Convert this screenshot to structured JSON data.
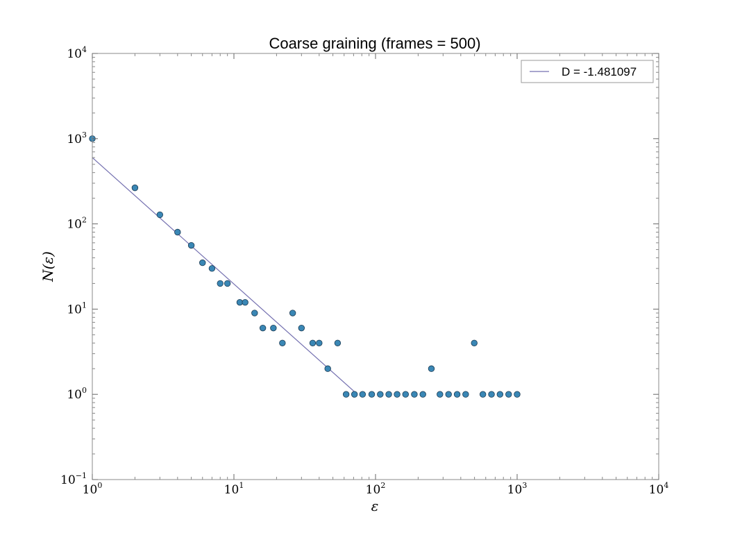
{
  "chart_data": {
    "type": "scatter",
    "title": "Coarse graining (frames = 500)",
    "xlabel": "ε",
    "ylabel": "N(ε)",
    "xscale": "log",
    "yscale": "log",
    "xlim": [
      1,
      10000
    ],
    "ylim": [
      0.1,
      10000
    ],
    "x_ticks": [
      {
        "base": "10",
        "exp": "0",
        "value": 1
      },
      {
        "base": "10",
        "exp": "1",
        "value": 10
      },
      {
        "base": "10",
        "exp": "2",
        "value": 100
      },
      {
        "base": "10",
        "exp": "3",
        "value": 1000
      },
      {
        "base": "10",
        "exp": "4",
        "value": 10000
      }
    ],
    "y_ticks": [
      {
        "base": "10",
        "exp": "−1",
        "value": 0.1
      },
      {
        "base": "10",
        "exp": "0",
        "value": 1
      },
      {
        "base": "10",
        "exp": "1",
        "value": 10
      },
      {
        "base": "10",
        "exp": "2",
        "value": 100
      },
      {
        "base": "10",
        "exp": "3",
        "value": 1000
      },
      {
        "base": "10",
        "exp": "4",
        "value": 10000
      }
    ],
    "grid": false,
    "legend_position": "top-right",
    "series": [
      {
        "kind": "scatter",
        "marker_color": "#3a87b5",
        "points": [
          [
            1,
            1000
          ],
          [
            2,
            265
          ],
          [
            3,
            128
          ],
          [
            4,
            80
          ],
          [
            5,
            56
          ],
          [
            6,
            35
          ],
          [
            7,
            30
          ],
          [
            8,
            20
          ],
          [
            9,
            20
          ],
          [
            11,
            12
          ],
          [
            12,
            12
          ],
          [
            14,
            9
          ],
          [
            16,
            6
          ],
          [
            19,
            6
          ],
          [
            22,
            4
          ],
          [
            26,
            9
          ],
          [
            30,
            6
          ],
          [
            36,
            4
          ],
          [
            40,
            4
          ],
          [
            46,
            2
          ],
          [
            54,
            4
          ],
          [
            62,
            1
          ],
          [
            71,
            1
          ],
          [
            81,
            1
          ],
          [
            94,
            1
          ],
          [
            108,
            1
          ],
          [
            124,
            1
          ],
          [
            142,
            1
          ],
          [
            163,
            1
          ],
          [
            188,
            1
          ],
          [
            216,
            1
          ],
          [
            248,
            2
          ],
          [
            285,
            1
          ],
          [
            328,
            1
          ],
          [
            377,
            1
          ],
          [
            433,
            1
          ],
          [
            498,
            4
          ],
          [
            573,
            1
          ],
          [
            659,
            1
          ],
          [
            757,
            1
          ],
          [
            871,
            1
          ],
          [
            1000,
            1
          ]
        ]
      },
      {
        "kind": "line",
        "name": "D = -1.481097",
        "color": "#7470b0",
        "points": [
          [
            1,
            600
          ],
          [
            74.5,
            1
          ]
        ]
      }
    ]
  }
}
